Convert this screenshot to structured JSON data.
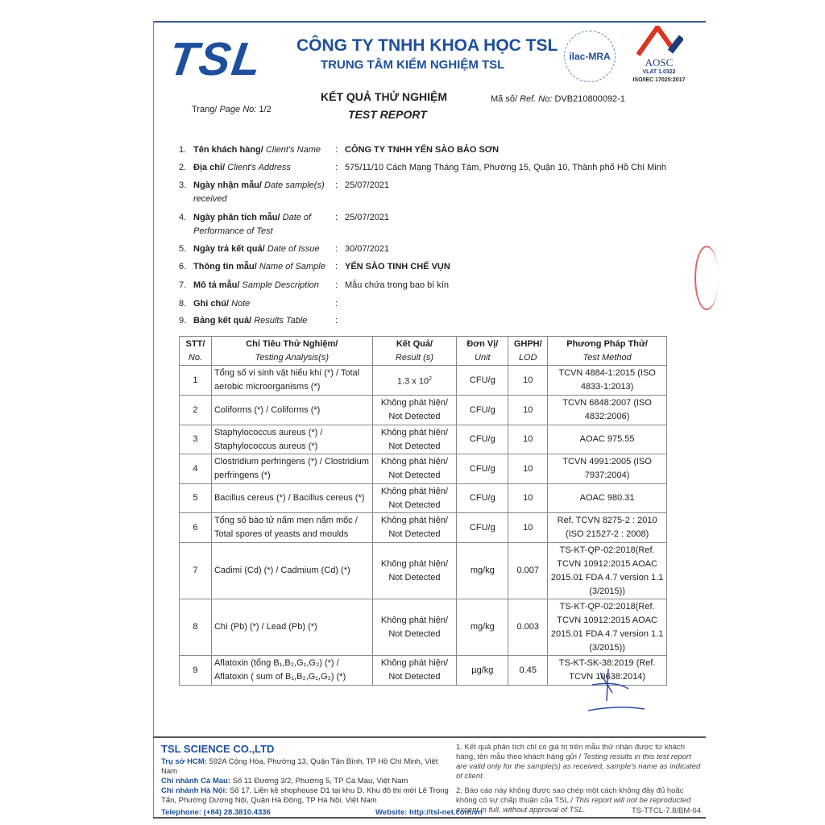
{
  "header": {
    "logo": "TSL",
    "company": "CÔNG TY TNHH KHOA HỌC TSL",
    "center": "TRUNG TÂM KIỂM NGHIỆM TSL",
    "ilac": "ilac-MRA",
    "aosc": "AOSC",
    "vlat": "VLAT 1.0322",
    "iso": "ISO/IEC 17025:2017"
  },
  "title": {
    "vi": "KẾT QUẢ THỬ NGHIỆM",
    "en": "TEST REPORT"
  },
  "page_label": "Trang/",
  "page_label_en": "Page No:",
  "page_no": "1/2",
  "ref_label": "Mã số/",
  "ref_label_en": "Ref. No:",
  "ref_no": "DVB210800092-1",
  "info": [
    {
      "n": "1.",
      "vi": "Tên khách hàng/",
      "en": "Client's Name",
      "value": "CÔNG TY TNHH YẾN SÀO BẢO SƠN"
    },
    {
      "n": "2.",
      "vi": "Địa chỉ/",
      "en": "Client's Address",
      "value": "575/11/10 Cách Mạng Tháng Tám, Phường 15, Quận 10, Thành phố Hồ Chí Minh"
    },
    {
      "n": "3.",
      "vi": "Ngày nhận mẫu/",
      "en": "Date sample(s) received",
      "value": "25/07/2021"
    },
    {
      "n": "4.",
      "vi": "Ngày phân tích mẫu/",
      "en": "Date of Performance of Test",
      "value": "25/07/2021"
    },
    {
      "n": "5.",
      "vi": "Ngày trả kết quả/",
      "en": "Date of Issue",
      "value": "30/07/2021"
    },
    {
      "n": "6.",
      "vi": "Thông tin mẫu/",
      "en": "Name of Sample",
      "value": "YẾN SÀO TINH CHẾ VỤN"
    },
    {
      "n": "7.",
      "vi": "Mô tả mẫu/",
      "en": "Sample Description",
      "value": "Mẫu chứa trong bao bì kín"
    },
    {
      "n": "8.",
      "vi": "Ghi chú/",
      "en": "Note",
      "value": ""
    },
    {
      "n": "9.",
      "vi": "Bảng kết quả/",
      "en": "Results Table",
      "value": ""
    }
  ],
  "table": {
    "headers": [
      {
        "vi": "STT/",
        "en": "No."
      },
      {
        "vi": "Chỉ Tiêu Thử Nghiệm/",
        "en": "Testing Analysis(s)"
      },
      {
        "vi": "Kết Quả/",
        "en": "Result (s)"
      },
      {
        "vi": "Đơn Vị/",
        "en": "Unit"
      },
      {
        "vi": "GHPH/",
        "en": "LOD"
      },
      {
        "vi": "Phương Pháp Thử/",
        "en": "Test Method"
      }
    ],
    "rows": [
      {
        "no": "1",
        "analysis": "Tổng số vi sinh vật hiếu khí (*) / Total aerobic microorganisms (*)",
        "result": "1.3 x 10",
        "result_exp": "2",
        "unit": "CFU/g",
        "lod": "10",
        "method": "TCVN 4884-1:2015 (ISO 4833-1:2013)"
      },
      {
        "no": "2",
        "analysis": "Coliforms (*) / Coliforms (*)",
        "result": "Không phát hiện/ Not Detected",
        "unit": "CFU/g",
        "lod": "10",
        "method": "TCVN 6848:2007 (ISO 4832:2006)"
      },
      {
        "no": "3",
        "analysis": "Staphylococcus aureus (*) / Staphylococcus aureus (*)",
        "result": "Không phát hiện/ Not Detected",
        "unit": "CFU/g",
        "lod": "10",
        "method": "AOAC 975.55"
      },
      {
        "no": "4",
        "analysis": "Clostridium perfringens (*) / Clostridium perfringens (*)",
        "result": "Không phát hiện/ Not Detected",
        "unit": "CFU/g",
        "lod": "10",
        "method": "TCVN 4991:2005 (ISO 7937:2004)"
      },
      {
        "no": "5",
        "analysis": "Bacillus cereus (*) / Bacillus cereus (*)",
        "result": "Không phát hiện/ Not Detected",
        "unit": "CFU/g",
        "lod": "10",
        "method": "AOAC 980.31"
      },
      {
        "no": "6",
        "analysis": "Tổng số bào tử nấm men nấm mốc / Total spores of yeasts and moulds",
        "result": "Không phát hiện/ Not Detected",
        "unit": "CFU/g",
        "lod": "10",
        "method": "Ref. TCVN 8275-2 : 2010 (ISO 21527-2 : 2008)"
      },
      {
        "no": "7",
        "analysis": "Cadimi (Cd) (*) / Cadmium (Cd) (*)",
        "result": "Không phát hiện/ Not Detected",
        "unit": "mg/kg",
        "lod": "0.007",
        "method": "TS-KT-QP-02:2018(Ref. TCVN 10912:2015 AOAC 2015.01 FDA 4.7 version 1.1 (3/2015))"
      },
      {
        "no": "8",
        "analysis": "Chì (Pb) (*) / Lead (Pb) (*)",
        "result": "Không phát hiện/ Not Detected",
        "unit": "mg/kg",
        "lod": "0.003",
        "method": "TS-KT-QP-02:2018(Ref. TCVN 10912:2015 AOAC 2015.01 FDA 4.7 version 1.1 (3/2015))"
      },
      {
        "no": "9",
        "analysis": "Aflatoxin (tổng B₁,B₂,G₁,G₂) (*) / Aflatoxin ( sum of B₁,B₂,G₁,G₂) (*)",
        "result": "Không phát hiện/ Not Detected",
        "unit": "µg/kg",
        "lod": "0.45",
        "method": "TS-KT-SK-38:2019 (Ref. TCVN 10638:2014)"
      }
    ]
  },
  "footer": {
    "company": "TSL SCIENCE CO.,LTD",
    "hcm_label": "Trụ sở HCM:",
    "hcm": "592A Cộng Hòa, Phường 13, Quận Tân Bình, TP Hồ Chí Minh, Việt Nam",
    "cm_label": "Chi nhánh Cà Mau:",
    "cm": "Số 11 Đường 3/2, Phường 5, TP Cà Mau, Việt Nam",
    "hn_label": "Chi nhánh Hà Nội:",
    "hn": "Số 17, Liền kề shophouse D1 tại khu D, Khu đô thị mới Lê Trọng Tấn, Phường Dương Nội, Quận Hà Đông, TP Hà Nội, Việt Nam",
    "telephone": "Telephone: (+84) 28.3810.4336",
    "website": "Website: http://tsl-net.com.vn",
    "note1_vi": "1. Kết quả phân tích chỉ có giá trị trên mẫu thử nhận được từ khách hàng, tên mẫu theo khách hàng gửi /",
    "note1_en": "Testing results in this test report are valid only for the sample(s) as received, sample's name as indicated of client.",
    "note2_vi": "2. Báo cáo này không được sao chép một cách không đầy đủ hoặc không có sự chấp thuận của TSL./",
    "note2_en": "This report will not be reproducted except in full, without approval of TSL.",
    "form_code": "TS-TTCL-7.8/BM-04"
  },
  "colors": {
    "brand": "#1d4f9c",
    "stamp": "#d66666"
  }
}
